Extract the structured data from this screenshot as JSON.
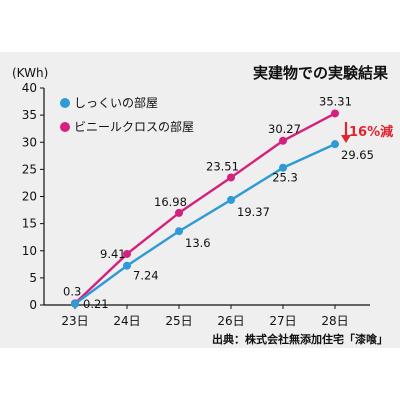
{
  "chart_data": {
    "type": "line",
    "title": "実建物での実験結果",
    "ylabel": "(KWh)",
    "xlabel": "",
    "categories": [
      "23日",
      "24日",
      "25日",
      "26日",
      "27日",
      "28日"
    ],
    "ylim": [
      0,
      40
    ],
    "yticks": [
      0,
      5,
      10,
      15,
      20,
      25,
      30,
      35,
      40
    ],
    "grid": false,
    "legend_position": "top-left",
    "series": [
      {
        "name": "しっくいの部屋",
        "color": "#2e9ad6",
        "values": [
          0.21,
          7.24,
          13.6,
          19.37,
          25.3,
          29.65
        ],
        "labels": [
          "0.21",
          "7.24",
          "13.6",
          "19.37",
          "25.3",
          "29.65"
        ]
      },
      {
        "name": "ビニールクロスの部屋",
        "color": "#d4217d",
        "values": [
          0.3,
          9.41,
          16.98,
          23.51,
          30.27,
          35.31
        ],
        "labels": [
          "0.3",
          "9.41",
          "16.98",
          "23.51",
          "30.27",
          "35.31"
        ]
      }
    ],
    "annotation": {
      "text": "16%減",
      "color": "#e0252e"
    },
    "source": "出典：株式会社無添加住宅「漆喰」"
  }
}
